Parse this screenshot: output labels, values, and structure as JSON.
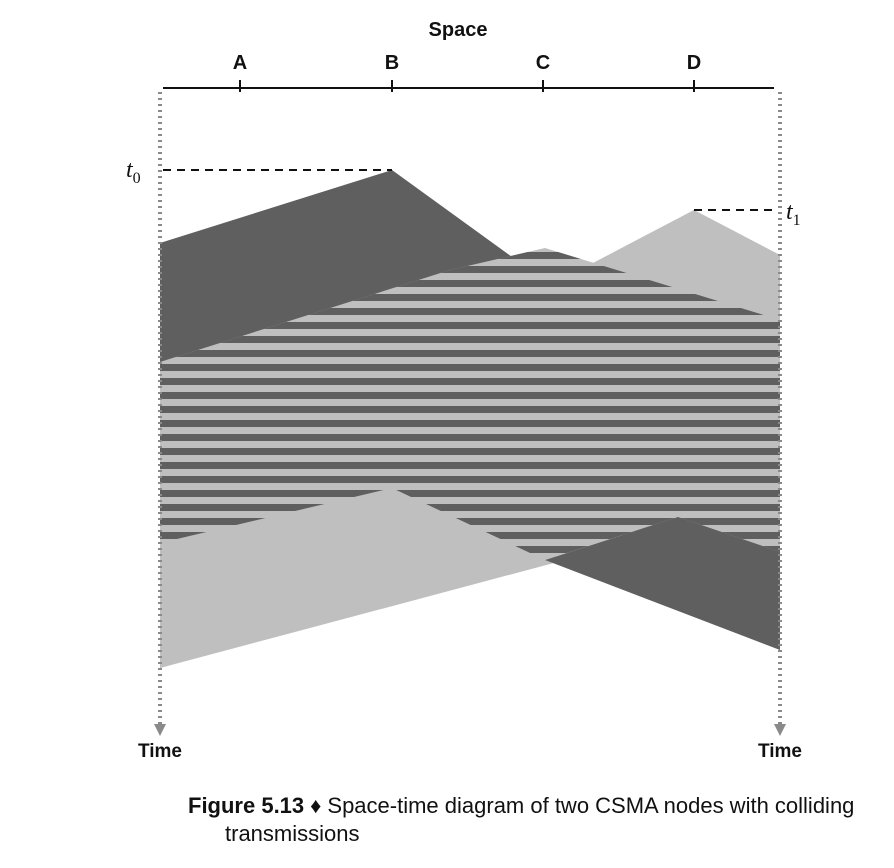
{
  "diagram": {
    "axis_title": "Space",
    "nodes": [
      "A",
      "B",
      "C",
      "D"
    ],
    "time_labels": [
      "Time",
      "Time"
    ],
    "events": [
      {
        "symbol": "t",
        "subscript": "0",
        "node": "B"
      },
      {
        "symbol": "t",
        "subscript": "1",
        "node": "D"
      }
    ],
    "colors": {
      "transmission_B": "#5f5f5f",
      "transmission_D": "#bfbfbf",
      "background": "#ffffff",
      "axis": "#111111",
      "time_arrow": "#8a8a8a"
    }
  },
  "caption": {
    "label": "Figure 5.13",
    "separator": "♦",
    "text_line1": "Space-time diagram of two CSMA nodes with colliding",
    "text_line2": "transmissions"
  }
}
